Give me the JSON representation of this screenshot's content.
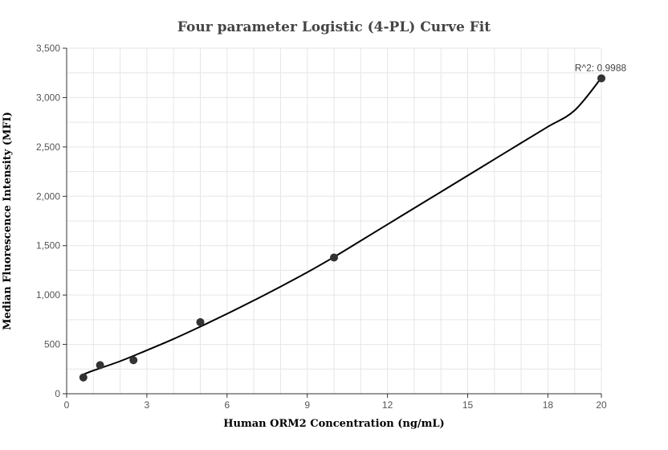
{
  "chart_data": {
    "type": "scatter",
    "title": "Four parameter Logistic (4-PL) Curve Fit",
    "xlabel": "Human ORM2 Concentration (ng/mL)",
    "ylabel": "Median Fluorescence Intensity (MFI)",
    "xlim": [
      0,
      20
    ],
    "ylim": [
      0,
      3500
    ],
    "x_ticks": [
      0,
      3,
      6,
      9,
      12,
      15,
      18,
      20
    ],
    "y_ticks": [
      0,
      500,
      1000,
      1500,
      2000,
      2500,
      3000,
      3500
    ],
    "y_tick_labels": [
      "0",
      "500",
      "1,000",
      "1,500",
      "2,000",
      "2,500",
      "3,000",
      "3,500"
    ],
    "grid": true,
    "points": [
      {
        "x": 0.625,
        "y": 165
      },
      {
        "x": 1.25,
        "y": 290
      },
      {
        "x": 2.5,
        "y": 340
      },
      {
        "x": 5,
        "y": 725
      },
      {
        "x": 10,
        "y": 1380
      },
      {
        "x": 20,
        "y": 3195
      }
    ],
    "fit_curve": {
      "x": [
        0.625,
        1,
        2,
        3,
        4,
        5,
        6,
        7,
        8,
        9,
        10,
        11,
        12,
        13,
        14,
        15,
        16,
        17,
        18,
        19,
        20
      ],
      "y": [
        195,
        235,
        330,
        440,
        555,
        680,
        810,
        945,
        1085,
        1230,
        1385,
        1550,
        1715,
        1880,
        2045,
        2210,
        2375,
        2540,
        2705,
        2870,
        3200
      ]
    },
    "annotation": {
      "text": "R^2: 0.9988",
      "x": 20,
      "y": 3195
    },
    "colors": {
      "points": "#333333",
      "curve": "#000000",
      "grid": "#e6e6e6",
      "axis": "#333333"
    }
  }
}
